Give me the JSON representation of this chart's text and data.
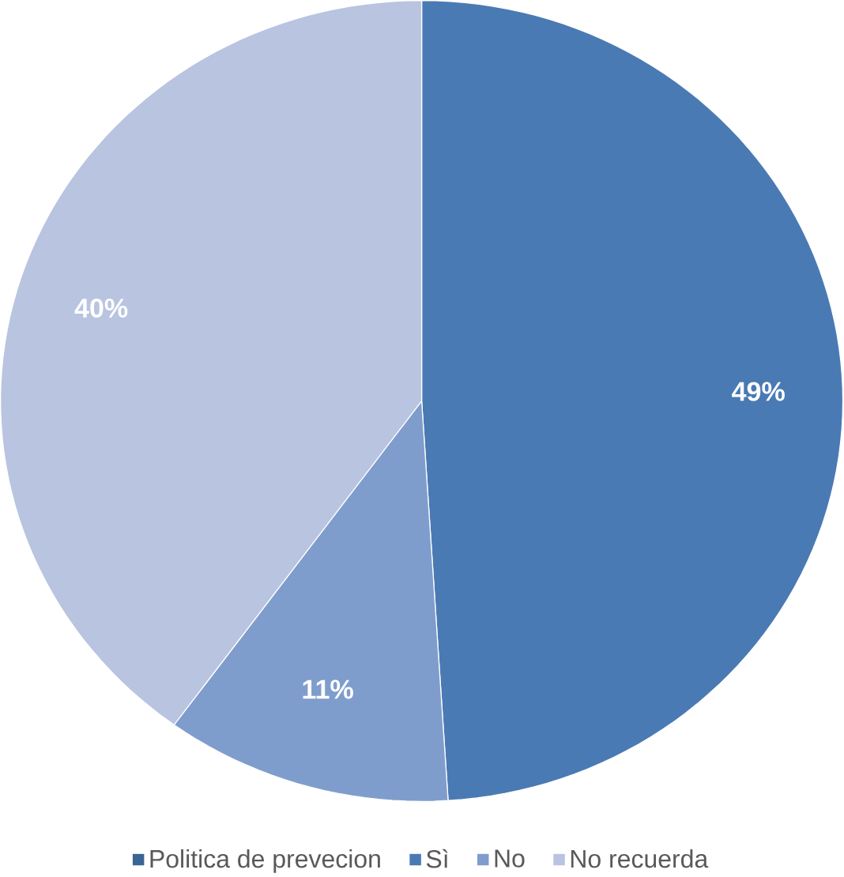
{
  "chart_data": {
    "type": "pie",
    "categories": [
      "Politica de prevecion",
      "Sì",
      "No",
      "No recuerda"
    ],
    "values": [
      0,
      49,
      11,
      40
    ],
    "colors": [
      "#3a6496",
      "#4a7ab4",
      "#7f9dcc",
      "#b8c4e0"
    ],
    "value_labels": [
      null,
      "49%",
      "11%",
      "40%"
    ],
    "legend": "bottom"
  }
}
